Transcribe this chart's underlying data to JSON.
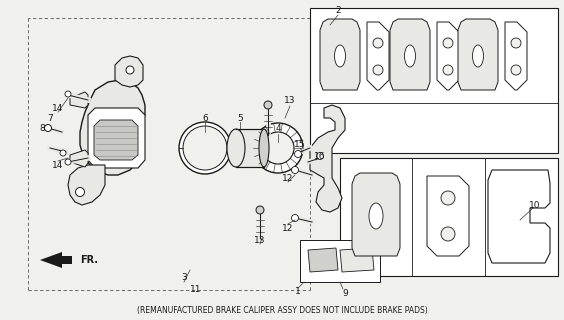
{
  "footer_text": "(REMANUFACTURED BRAKE CALIPER ASSY DOES NOT INCLUDE BRAKE PADS)",
  "bg_color": "#f0f0ec",
  "line_color": "#1a1a1a",
  "fig_width": 5.64,
  "fig_height": 3.2,
  "dpi": 100,
  "footer_fontsize": 5.5,
  "label_fontsize": 6.5
}
